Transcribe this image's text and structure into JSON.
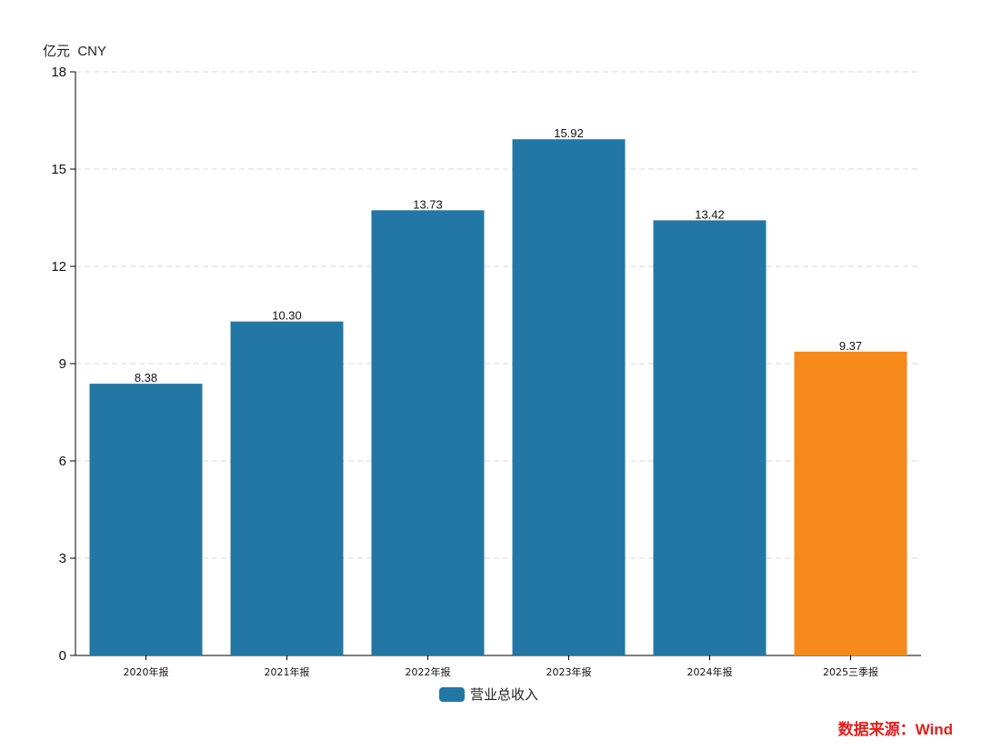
{
  "colors": {
    "primary": "#2377a4",
    "highlight": "#f5891a",
    "grid": "#d9d9d9",
    "source": "#e0201b"
  },
  "unit_label": "亿元  CNY",
  "source_label": "数据来源：Wind",
  "chart_data": {
    "type": "bar",
    "categories": [
      "2020年报",
      "2021年报",
      "2022年报",
      "2023年报",
      "2024年报",
      "2025三季报"
    ],
    "series": [
      {
        "name": "营业总收入",
        "values": [
          8.38,
          10.3,
          13.73,
          15.92,
          13.42,
          9.37
        ]
      }
    ],
    "value_labels": [
      "8.38",
      "10.30",
      "13.73",
      "15.92",
      "13.42",
      "9.37"
    ],
    "highlight_index": 5,
    "ylim": [
      0,
      18
    ],
    "yticks": [
      0,
      3,
      6,
      9,
      12,
      15,
      18
    ],
    "ylabel": "亿元  CNY",
    "xlabel": "",
    "grid": true,
    "legend_position": "bottom-center"
  }
}
